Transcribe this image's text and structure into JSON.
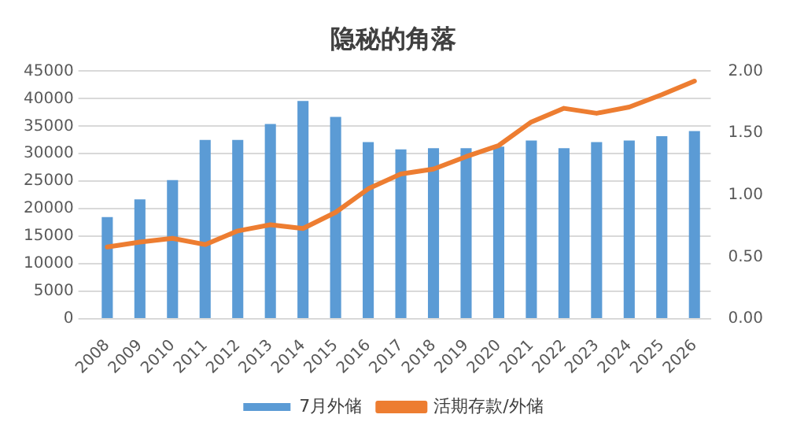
{
  "chart_data": {
    "type": "bar",
    "title": "隐秘的角落",
    "categories": [
      "2008",
      "2009",
      "2010",
      "2011",
      "2012",
      "2013",
      "2014",
      "2015",
      "2016",
      "2017",
      "2018",
      "2019",
      "2020",
      "2021",
      "2022",
      "2023",
      "2024",
      "2025",
      "2026"
    ],
    "series": [
      {
        "name": "7月外储",
        "color": "#5b9bd5",
        "values": [
          18500,
          21700,
          25200,
          32500,
          32500,
          35400,
          39600,
          36700,
          32100,
          30800,
          31000,
          31000,
          31300,
          32400,
          31000,
          32100,
          32400,
          33200,
          34100
        ]
      },
      {
        "name": "活期存款/外储",
        "type": "line",
        "axis": "y2",
        "color": "#ed7d31",
        "values": [
          0.58,
          0.62,
          0.65,
          0.6,
          0.71,
          0.76,
          0.73,
          0.86,
          1.05,
          1.17,
          1.21,
          1.31,
          1.4,
          1.59,
          1.7,
          1.66,
          1.71,
          1.81,
          1.92
        ]
      }
    ],
    "ylim": [
      0,
      45000
    ],
    "yticks": [
      0,
      5000,
      10000,
      15000,
      20000,
      25000,
      30000,
      35000,
      40000,
      45000
    ],
    "y2lim": [
      0,
      2
    ],
    "y2ticks": [
      {
        "value": 0,
        "label": "0.00"
      },
      {
        "value": 0.5,
        "label": "0.50"
      },
      {
        "value": 1,
        "label": "1.00"
      },
      {
        "value": 1.5,
        "label": "1.50"
      },
      {
        "value": 2,
        "label": "2.00"
      }
    ],
    "grid": "y",
    "legend": "bottom",
    "marker": "none"
  }
}
